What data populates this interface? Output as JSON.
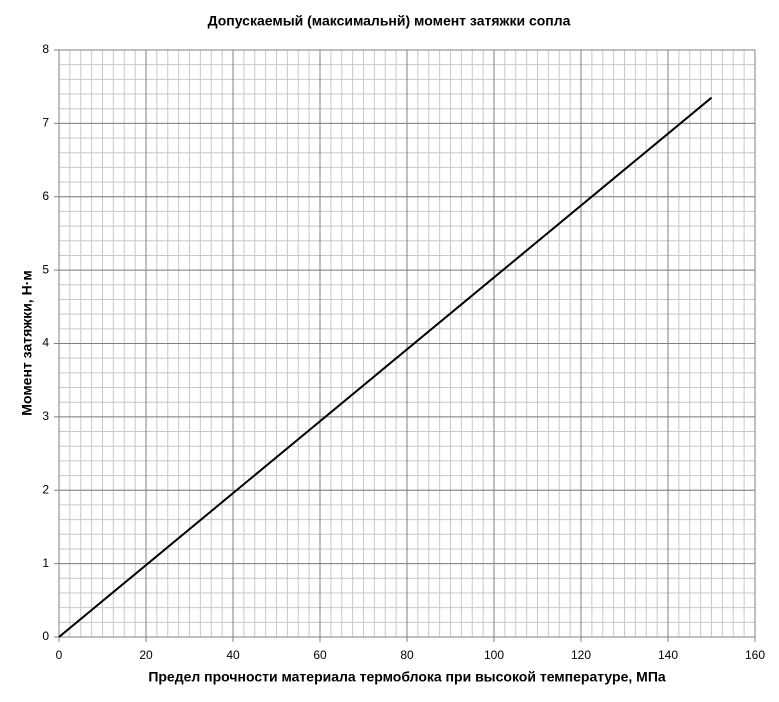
{
  "chart_data": {
    "type": "line",
    "title": "Допускаемый (максимальнй) момент затяжки сопла",
    "x_label": "Предел прочности материала термоблока при высокой температуре, МПа",
    "y_label": "Момент затяжки, Н·м",
    "x": [
      0,
      150
    ],
    "values": [
      0,
      7.35
    ],
    "color": "#000000",
    "xlim": [
      0,
      160
    ],
    "xticks": [
      0,
      20,
      40,
      60,
      80,
      100,
      120,
      140,
      160
    ],
    "ylim": [
      0,
      8
    ],
    "yticks": [
      0,
      1,
      2,
      3,
      4,
      5,
      6,
      7,
      8
    ],
    "grid": true,
    "minor_grid_step": [
      2.5,
      0.2
    ]
  }
}
